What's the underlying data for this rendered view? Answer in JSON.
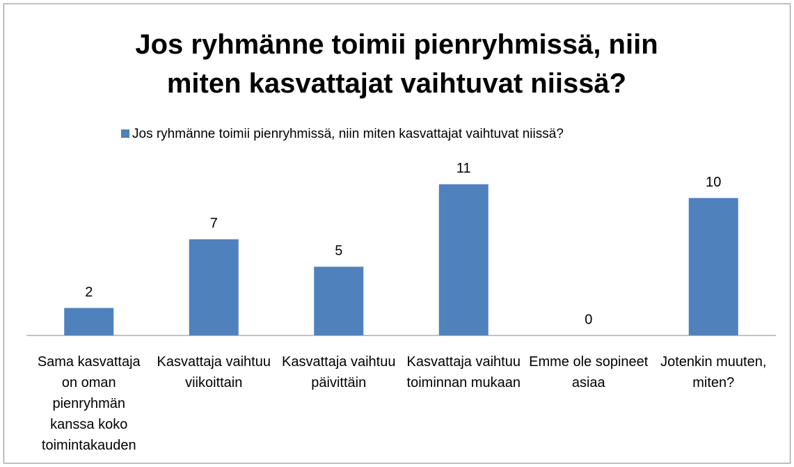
{
  "chart_data": {
    "type": "bar",
    "title": "Jos ryhmänne toimii pienryhmissä, niin miten kasvattajat vaihtuvat niissä?",
    "categories": [
      "Sama kasvattaja on oman pienryhmän kanssa koko toimintakauden",
      "Kasvattaja vaihtuu viikoittain",
      "Kasvattaja vaihtuu päivittäin",
      "Kasvattaja vaihtuu toiminnan mukaan",
      "Emme ole sopineet asiaa",
      "Jotenkin muuten, miten?"
    ],
    "series": [
      {
        "name": "Jos ryhmänne toimii pienryhmissä, niin miten kasvattajat vaihtuvat niissä?",
        "color": "#4f81bd",
        "values": [
          2,
          7,
          5,
          11,
          0,
          10
        ]
      }
    ],
    "ylim": [
      0,
      12
    ],
    "legend": "top"
  }
}
